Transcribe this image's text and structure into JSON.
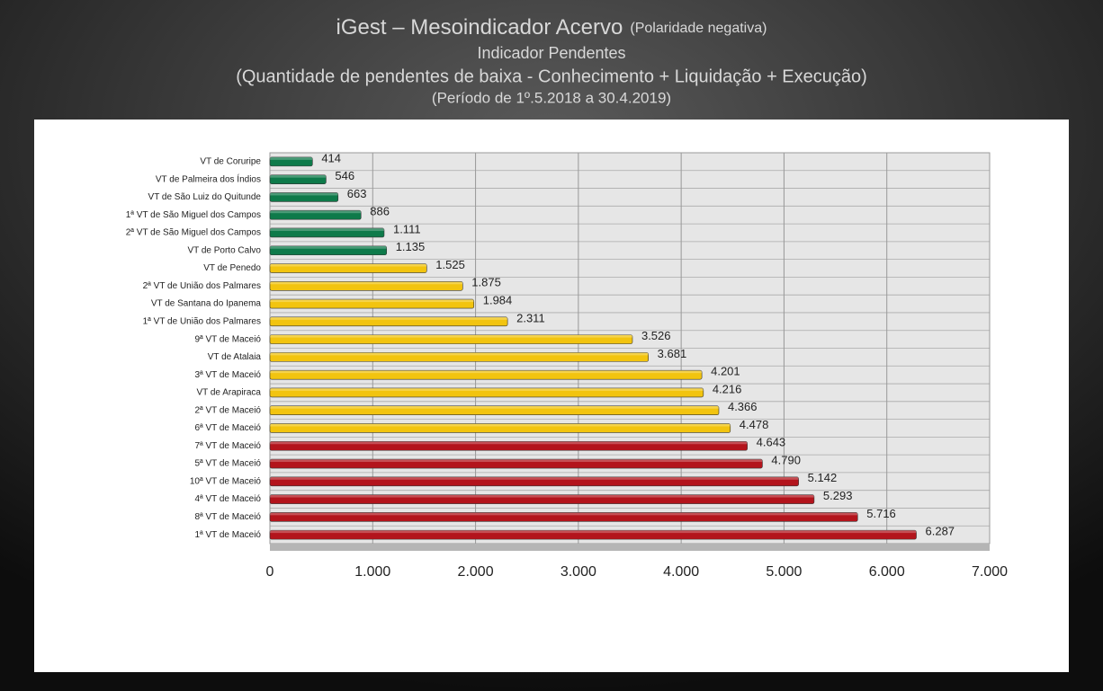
{
  "chart_data": {
    "type": "bar",
    "orientation": "horizontal",
    "title": "iGest – Mesoindicador Acervo",
    "title_note": "(Polaridade negativa)",
    "subtitle": "Indicador Pendentes",
    "description": "(Quantidade de pendentes de baixa - Conhecimento + Liquidação + Execução)",
    "period": "(Período de 1º.5.2018  a  30.4.2019)",
    "categories": [
      "VT de Coruripe",
      "VT de Palmeira dos Índios",
      "VT de São Luiz do Quitunde",
      "1ª VT de São Miguel dos Campos",
      "2ª VT de São Miguel dos Campos",
      "VT de Porto Calvo",
      "VT de Penedo",
      "2ª VT de União dos Palmares",
      "VT de Santana do Ipanema",
      "1ª VT de União dos Palmares",
      "9ª VT de Maceió",
      "VT de Atalaia",
      "3ª VT de Maceió",
      "VT de Arapiraca",
      "2ª VT de Maceió",
      "6ª VT de Maceió",
      "7ª VT de Maceió",
      "5ª VT de Maceió",
      "10ª VT de Maceió",
      "4ª VT de Maceió",
      "8ª VT de Maceió",
      "1ª VT de Maceió"
    ],
    "values": [
      414,
      546,
      663,
      886,
      1111,
      1135,
      1525,
      1875,
      1984,
      2311,
      3526,
      3681,
      4201,
      4216,
      4366,
      4478,
      4643,
      4790,
      5142,
      5293,
      5716,
      6287
    ],
    "value_labels": [
      "414",
      "546",
      "663",
      "886",
      "1.111",
      "1.135",
      "1.525",
      "1.875",
      "1.984",
      "2.311",
      "3.526",
      "3.681",
      "4.201",
      "4.216",
      "4.366",
      "4.478",
      "4.643",
      "4.790",
      "5.142",
      "5.293",
      "5.716",
      "6.287"
    ],
    "colors": [
      "#0e7a4a",
      "#0e7a4a",
      "#0e7a4a",
      "#0e7a4a",
      "#0e7a4a",
      "#0e7a4a",
      "#f2c40f",
      "#f2c40f",
      "#f2c40f",
      "#f2c40f",
      "#f2c40f",
      "#f2c40f",
      "#f2c40f",
      "#f2c40f",
      "#f2c40f",
      "#f2c40f",
      "#b3141c",
      "#b3141c",
      "#b3141c",
      "#b3141c",
      "#b3141c",
      "#b3141c"
    ],
    "xlim": [
      0,
      7000
    ],
    "xticks": [
      0,
      {
        "value": 1000,
        "label": "1.000"
      },
      {
        "value": 2000,
        "label": "2.000"
      },
      {
        "value": 3000,
        "label": "3.000"
      },
      {
        "value": 4000,
        "label": "4.000"
      },
      {
        "value": 5000,
        "label": "5.000"
      },
      {
        "value": 6000,
        "label": "6.000"
      },
      {
        "value": 7000,
        "label": "7.000"
      }
    ],
    "grid": true
  }
}
